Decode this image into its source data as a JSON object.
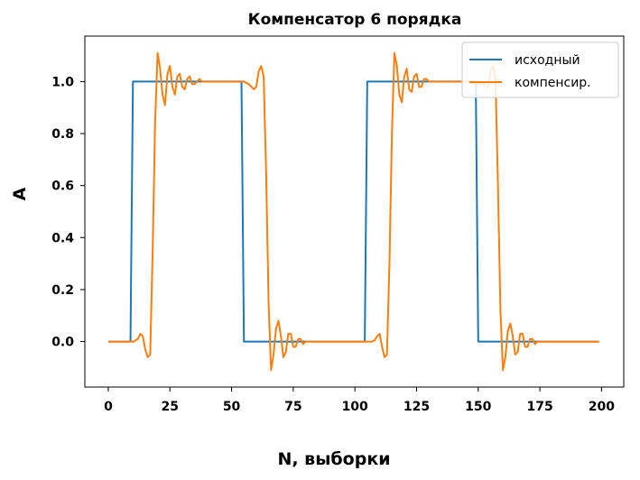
{
  "chart_data": {
    "type": "line",
    "title": "Компенсатор 6 порядка",
    "xlabel": "N, выборки",
    "ylabel": "A",
    "xlim": [
      -9.5,
      209
    ],
    "ylim": [
      -0.175,
      1.175
    ],
    "xticks": [
      0,
      25,
      50,
      75,
      100,
      125,
      150,
      175,
      200
    ],
    "yticks": [
      0.0,
      0.2,
      0.4,
      0.6,
      0.8,
      1.0
    ],
    "ytick_labels": [
      "0.0",
      "0.2",
      "0.4",
      "0.6",
      "0.8",
      "1.0"
    ],
    "grid": false,
    "legend_position": "top-right",
    "series": [
      {
        "name": "исходный",
        "color": "#1f77b4",
        "x": [
          0,
          9,
          9.5,
          10,
          54,
          54.5,
          55,
          104,
          104.5,
          105,
          149,
          149.5,
          150,
          199
        ],
        "y": [
          0,
          0,
          0.5,
          1,
          1,
          0.5,
          0,
          0,
          0.5,
          1,
          1,
          0.5,
          0,
          0
        ]
      },
      {
        "name": "компенсир.",
        "color": "#ff7f0e",
        "x": [
          0,
          10,
          10.5,
          11,
          12,
          13,
          14,
          15,
          16,
          17,
          18,
          19,
          20,
          21,
          22,
          23,
          24,
          25,
          26,
          27,
          28,
          29,
          30,
          31,
          32,
          33,
          34,
          35,
          36,
          37,
          38,
          40,
          45,
          50,
          55,
          57,
          58,
          59,
          60,
          61,
          62,
          63,
          64,
          65,
          66,
          67,
          68,
          69,
          70,
          71,
          72,
          73,
          74,
          75,
          76,
          77,
          78,
          79,
          80,
          82,
          85,
          90,
          95,
          100,
          105,
          107,
          108,
          109,
          110,
          111,
          112,
          113,
          114,
          115,
          116,
          117,
          118,
          119,
          120,
          121,
          122,
          123,
          124,
          125,
          126,
          127,
          128,
          129,
          130,
          132,
          135,
          140,
          145,
          150,
          152,
          153,
          154,
          155,
          156,
          157,
          158,
          159,
          160,
          161,
          162,
          163,
          164,
          165,
          166,
          167,
          168,
          169,
          170,
          171,
          172,
          173,
          174,
          175,
          176,
          177,
          178,
          180,
          185,
          190,
          195,
          199
        ],
        "y": [
          0,
          0,
          0.0,
          0.005,
          0.01,
          0.03,
          0.02,
          -0.03,
          -0.06,
          -0.05,
          0.35,
          0.85,
          1.11,
          1.05,
          0.95,
          0.91,
          1.03,
          1.06,
          0.98,
          0.95,
          1.02,
          1.03,
          0.98,
          0.97,
          1.01,
          1.02,
          0.99,
          0.99,
          1.0,
          1.01,
          1.0,
          1.0,
          1.0,
          1.0,
          1.0,
          0.99,
          0.98,
          0.97,
          0.98,
          1.04,
          1.06,
          1.02,
          0.65,
          0.15,
          -0.11,
          -0.05,
          0.05,
          0.08,
          0.02,
          -0.06,
          -0.04,
          0.03,
          0.03,
          -0.02,
          -0.02,
          0.01,
          0.01,
          -0.01,
          0.0,
          0.0,
          0.0,
          0.0,
          0.0,
          0.0,
          0.0,
          0.0,
          0.005,
          0.02,
          0.03,
          -0.02,
          -0.06,
          -0.05,
          0.3,
          0.8,
          1.11,
          1.06,
          0.95,
          0.92,
          1.02,
          1.05,
          0.97,
          0.96,
          1.02,
          1.03,
          0.98,
          0.98,
          1.01,
          1.01,
          1.0,
          1.0,
          1.0,
          1.0,
          1.0,
          0.99,
          0.99,
          0.98,
          0.98,
          1.04,
          1.06,
          1.01,
          0.6,
          0.12,
          -0.11,
          -0.06,
          0.04,
          0.07,
          0.02,
          -0.05,
          -0.04,
          0.03,
          0.03,
          -0.02,
          -0.02,
          0.01,
          0.01,
          -0.01,
          0.0,
          0.0,
          0.0,
          0.0,
          0.0,
          0.0,
          0.0,
          0.0,
          0.0,
          0.0
        ]
      }
    ]
  }
}
